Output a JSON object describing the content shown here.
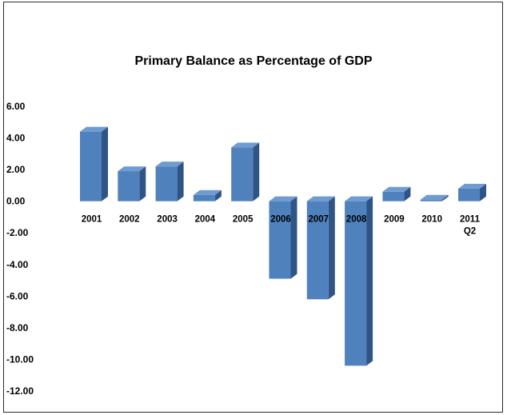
{
  "chart_data": {
    "type": "bar",
    "title": "Primary Balance as Percentage of GDP",
    "xlabel": "",
    "ylabel": "",
    "categories": [
      "2001",
      "2002",
      "2003",
      "2004",
      "2005",
      "2006",
      "2007",
      "2008",
      "2009",
      "2010",
      "2011 Q2"
    ],
    "category_lines": [
      [
        "2001"
      ],
      [
        "2002"
      ],
      [
        "2003"
      ],
      [
        "2004"
      ],
      [
        "2005"
      ],
      [
        "2006"
      ],
      [
        "2007"
      ],
      [
        "2008"
      ],
      [
        "2009"
      ],
      [
        "2010"
      ],
      [
        "2011",
        "Q2"
      ]
    ],
    "values": [
      4.4,
      1.9,
      2.2,
      0.4,
      3.4,
      -4.9,
      -6.2,
      -10.4,
      0.6,
      0.1,
      0.8
    ],
    "ylim": [
      -12,
      6
    ],
    "yticks": [
      "6.00",
      "4.00",
      "2.00",
      "0.00",
      "-2.00",
      "-4.00",
      "-6.00",
      "-8.00",
      "-10.00",
      "-12.00"
    ],
    "grid": false,
    "legend": "none",
    "colors": {
      "bar_front": "#4f81bd",
      "bar_side": "#2f5586",
      "bar_top": "#6f9bd1"
    }
  }
}
